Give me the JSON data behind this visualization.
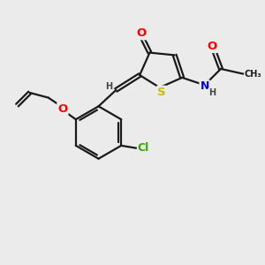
{
  "bg_color": "#ebebeb",
  "bond_color": "#1a1a1a",
  "atom_colors": {
    "O": "#ff0000",
    "N": "#0000cd",
    "S": "#ccbb00",
    "Cl": "#33aa00",
    "C": "#1a1a1a",
    "H": "#444444"
  },
  "line_width": 1.6,
  "font_size": 8.5,
  "figsize": [
    3.0,
    3.0
  ],
  "dpi": 100
}
